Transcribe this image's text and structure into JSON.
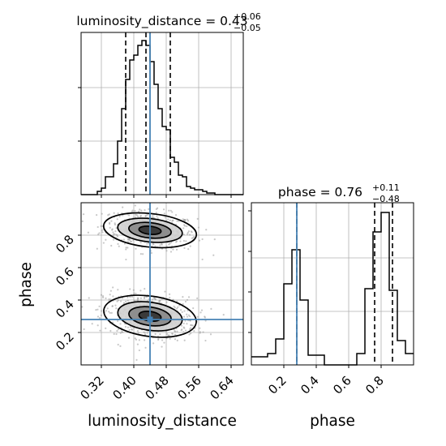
{
  "chart_data": {
    "type": "corner",
    "parameters": [
      "luminosity_distance",
      "phase"
    ],
    "panels": {
      "luminosity_distance_hist": {
        "type": "histogram",
        "title": {
          "base": "luminosity_distance = 0.43",
          "sup": "+0.06",
          "sub": "−0.05"
        },
        "xlim": [
          0.27,
          0.67
        ],
        "ylim": [
          0,
          1.0
        ],
        "bin_edges": [
          0.27,
          0.28,
          0.29,
          0.3,
          0.31,
          0.32,
          0.33,
          0.34,
          0.35,
          0.36,
          0.37,
          0.38,
          0.39,
          0.4,
          0.41,
          0.42,
          0.43,
          0.44,
          0.45,
          0.46,
          0.47,
          0.48,
          0.49,
          0.5,
          0.51,
          0.52,
          0.53,
          0.54,
          0.55,
          0.56,
          0.57,
          0.58,
          0.59,
          0.6,
          0.61,
          0.62,
          0.63,
          0.64,
          0.65,
          0.66,
          0.67
        ],
        "counts": [
          0.0,
          0.0,
          0.0,
          0.0,
          0.02,
          0.04,
          0.11,
          0.11,
          0.19,
          0.33,
          0.53,
          0.71,
          0.83,
          0.86,
          0.92,
          0.95,
          0.92,
          0.82,
          0.68,
          0.53,
          0.42,
          0.4,
          0.23,
          0.2,
          0.12,
          0.11,
          0.05,
          0.04,
          0.03,
          0.03,
          0.02,
          0.01,
          0.01,
          0.0,
          0.0,
          0.0,
          0.0,
          0.0,
          0.0,
          0.0
        ],
        "quantiles": [
          0.38,
          0.43,
          0.49
        ],
        "truth": 0.44
      },
      "phase_hist": {
        "type": "histogram",
        "title": {
          "base": "phase = 0.76",
          "sup": "+0.11",
          "sub": "−0.48"
        },
        "xlim": [
          0.0,
          1.0
        ],
        "ylim": [
          0,
          1.0
        ],
        "bin_edges": [
          0.0,
          0.05,
          0.1,
          0.15,
          0.2,
          0.25,
          0.3,
          0.35,
          0.4,
          0.45,
          0.5,
          0.55,
          0.6,
          0.65,
          0.7,
          0.75,
          0.8,
          0.85,
          0.9,
          0.95,
          1.0
        ],
        "counts": [
          0.05,
          0.05,
          0.07,
          0.16,
          0.5,
          0.71,
          0.4,
          0.06,
          0.06,
          0.0,
          0.0,
          0.0,
          0.0,
          0.07,
          0.47,
          0.82,
          0.94,
          0.46,
          0.15,
          0.07
        ],
        "quantiles": [
          0.28,
          0.76,
          0.87
        ],
        "truth": 0.28
      },
      "joint": {
        "type": "scatter_contour",
        "xlim": [
          0.27,
          0.67
        ],
        "ylim": [
          0.0,
          1.0
        ],
        "truth": [
          0.44,
          0.28
        ],
        "modes": [
          {
            "x": 0.44,
            "y": 0.83,
            "sx": 0.05,
            "sy": 0.05
          },
          {
            "x": 0.44,
            "y": 0.3,
            "sx": 0.05,
            "sy": 0.06
          }
        ]
      }
    },
    "axes": {
      "luminosity_distance": {
        "ticks": [
          "0.32",
          "0.40",
          "0.48",
          "0.56",
          "0.64"
        ],
        "label": "luminosity_distance"
      },
      "phase_y": {
        "ticks": [
          "0.2",
          "0.4",
          "0.6",
          "0.8"
        ],
        "label": "phase"
      },
      "phase_x": {
        "ticks": [
          "0.2",
          "0.4",
          "0.6",
          "0.8"
        ],
        "label": "phase"
      }
    },
    "grid": true,
    "colors": {
      "hist": "#000000",
      "truth": "#4682b4",
      "quantile": "#000000",
      "points": "#9a9a9a",
      "grid": "#b0b0b0"
    }
  }
}
